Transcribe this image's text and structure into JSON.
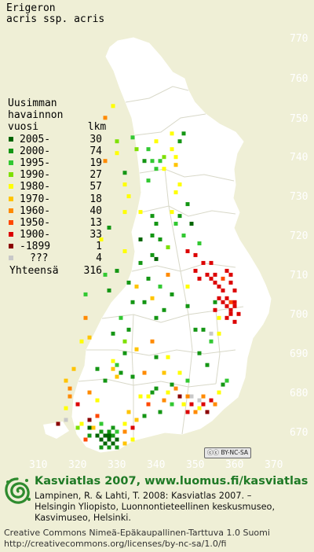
{
  "title_lines": [
    "Erigeron",
    "acris ssp. acris"
  ],
  "legend": {
    "heading": [
      "Uusimman",
      "havainnon",
      "vuosi        lkm"
    ],
    "items": [
      {
        "label": "2005-",
        "count": "30",
        "color": "#006400"
      },
      {
        "label": "2000-",
        "count": "74",
        "color": "#149614"
      },
      {
        "label": "1995-",
        "count": "19",
        "color": "#32c832"
      },
      {
        "label": "1990-",
        "count": "27",
        "color": "#7ee000"
      },
      {
        "label": "1980-",
        "count": "57",
        "color": "#ffff00"
      },
      {
        "label": "1970-",
        "count": "18",
        "color": "#ffc400"
      },
      {
        "label": "1960-",
        "count": "40",
        "color": "#ff8a00"
      },
      {
        "label": "1950-",
        "count": "13",
        "color": "#ff4800"
      },
      {
        "label": "1900-",
        "count": "33",
        "color": "#dc0000"
      },
      {
        "label": "-1899",
        "count": "1",
        "color": "#8b0000"
      },
      {
        "label": "???",
        "count": "4",
        "color": "#c8c8c8"
      }
    ],
    "total_label": "Yhteensä",
    "total_count": "316"
  },
  "axis_y": [
    "770",
    "760",
    "750",
    "740",
    "730",
    "720",
    "710",
    "700",
    "690",
    "680",
    "670"
  ],
  "axis_x": [
    "310",
    "320",
    "330",
    "340",
    "350",
    "360",
    "370"
  ],
  "badge": "BY-NC-SA",
  "footer": {
    "title": "Kasviatlas 2007, www.luomus.fi/kasviatlas",
    "citation": [
      "Lampinen, R. & Lahti, T. 2008: Kasviatlas 2007. –",
      "Helsingin Yliopisto, Luonnontieteellinen keskusmuseo,",
      "Kasvimuseo, Helsinki."
    ],
    "license": [
      "Creative Commons Nimeä-Epäkaupallinen-Tarttuva 1.0 Suomi",
      "http://creativecommons.org/licenses/by-nc-sa/1.0/fi"
    ]
  },
  "colors": {
    "background": "#efefd6",
    "land": "#ffffff",
    "boundary": "#d8d8c8",
    "footer_title": "#1f7a26"
  },
  "observations": [
    {
      "x": 316,
      "y": 672,
      "c": 9
    },
    {
      "x": 318,
      "y": 673,
      "c": 10
    },
    {
      "x": 321,
      "y": 671,
      "c": 3
    },
    {
      "x": 322,
      "y": 672,
      "c": 4
    },
    {
      "x": 324,
      "y": 673,
      "c": 9
    },
    {
      "x": 326,
      "y": 674,
      "c": 7
    },
    {
      "x": 321,
      "y": 677,
      "c": 8
    },
    {
      "x": 319,
      "y": 679,
      "c": 6
    },
    {
      "x": 319,
      "y": 681,
      "c": 6
    },
    {
      "x": 318,
      "y": 683,
      "c": 5
    },
    {
      "x": 320,
      "y": 686,
      "c": 5
    },
    {
      "x": 322,
      "y": 693,
      "c": 4
    },
    {
      "x": 324,
      "y": 694,
      "c": 5
    },
    {
      "x": 323,
      "y": 699,
      "c": 6
    },
    {
      "x": 323,
      "y": 705,
      "c": 2
    },
    {
      "x": 328,
      "y": 710,
      "c": 2
    },
    {
      "x": 325,
      "y": 671,
      "c": 5
    },
    {
      "x": 327,
      "y": 670,
      "c": 1
    },
    {
      "x": 327,
      "y": 668,
      "c": 0
    },
    {
      "x": 328,
      "y": 669,
      "c": 0
    },
    {
      "x": 328,
      "y": 667,
      "c": 0
    },
    {
      "x": 329,
      "y": 669,
      "c": 0
    },
    {
      "x": 329,
      "y": 668,
      "c": 0
    },
    {
      "x": 330,
      "y": 669,
      "c": 1
    },
    {
      "x": 330,
      "y": 667,
      "c": 0
    },
    {
      "x": 331,
      "y": 668,
      "c": 0
    },
    {
      "x": 329,
      "y": 670,
      "c": 1
    },
    {
      "x": 330,
      "y": 671,
      "c": 1
    },
    {
      "x": 331,
      "y": 670,
      "c": 2
    },
    {
      "x": 327,
      "y": 672,
      "c": 2
    },
    {
      "x": 333,
      "y": 670,
      "c": 6
    },
    {
      "x": 333,
      "y": 672,
      "c": 4
    },
    {
      "x": 335,
      "y": 671,
      "c": 8
    },
    {
      "x": 334,
      "y": 675,
      "c": 5
    },
    {
      "x": 336,
      "y": 673,
      "c": 5
    },
    {
      "x": 338,
      "y": 674,
      "c": 1
    },
    {
      "x": 337,
      "y": 679,
      "c": 4
    },
    {
      "x": 339,
      "y": 677,
      "c": 7
    },
    {
      "x": 340,
      "y": 680,
      "c": 1
    },
    {
      "x": 342,
      "y": 675,
      "c": 1
    },
    {
      "x": 343,
      "y": 678,
      "c": 6
    },
    {
      "x": 344,
      "y": 680,
      "c": 4
    },
    {
      "x": 345,
      "y": 682,
      "c": 1
    },
    {
      "x": 346,
      "y": 681,
      "c": 6
    },
    {
      "x": 345,
      "y": 677,
      "c": 2
    },
    {
      "x": 347,
      "y": 679,
      "c": 9
    },
    {
      "x": 348,
      "y": 677,
      "c": 4
    },
    {
      "x": 349,
      "y": 675,
      "c": 8
    },
    {
      "x": 349,
      "y": 679,
      "c": 6
    },
    {
      "x": 350,
      "y": 677,
      "c": 8
    },
    {
      "x": 350,
      "y": 679,
      "c": 10
    },
    {
      "x": 351,
      "y": 675,
      "c": 6
    },
    {
      "x": 352,
      "y": 676,
      "c": 4
    },
    {
      "x": 352,
      "y": 678,
      "c": 10
    },
    {
      "x": 353,
      "y": 679,
      "c": 6
    },
    {
      "x": 353,
      "y": 677,
      "c": 8
    },
    {
      "x": 354,
      "y": 675,
      "c": 9
    },
    {
      "x": 355,
      "y": 678,
      "c": 8
    },
    {
      "x": 356,
      "y": 677,
      "c": 6
    },
    {
      "x": 357,
      "y": 680,
      "c": 4
    },
    {
      "x": 358,
      "y": 682,
      "c": 1
    },
    {
      "x": 359,
      "y": 683,
      "c": 2
    },
    {
      "x": 341,
      "y": 689,
      "c": 1
    },
    {
      "x": 340,
      "y": 693,
      "c": 6
    },
    {
      "x": 333,
      "y": 693,
      "c": 3
    },
    {
      "x": 333,
      "y": 690,
      "c": 1
    },
    {
      "x": 336,
      "y": 691,
      "c": 5
    },
    {
      "x": 330,
      "y": 686,
      "c": 5
    },
    {
      "x": 331,
      "y": 684,
      "c": 5
    },
    {
      "x": 330,
      "y": 688,
      "c": 4
    },
    {
      "x": 331,
      "y": 687,
      "c": 2
    },
    {
      "x": 330,
      "y": 695,
      "c": 1
    },
    {
      "x": 334,
      "y": 696,
      "c": 1
    },
    {
      "x": 332,
      "y": 699,
      "c": 2
    },
    {
      "x": 335,
      "y": 703,
      "c": 1
    },
    {
      "x": 338,
      "y": 703,
      "c": 1
    },
    {
      "x": 341,
      "y": 699,
      "c": 1
    },
    {
      "x": 340,
      "y": 704,
      "c": 5
    },
    {
      "x": 343,
      "y": 701,
      "c": 1
    },
    {
      "x": 339,
      "y": 709,
      "c": 1
    },
    {
      "x": 336,
      "y": 707,
      "c": 5
    },
    {
      "x": 342,
      "y": 707,
      "c": 2
    },
    {
      "x": 344,
      "y": 710,
      "c": 6
    },
    {
      "x": 337,
      "y": 713,
      "c": 1
    },
    {
      "x": 341,
      "y": 714,
      "c": 0
    },
    {
      "x": 340,
      "y": 715,
      "c": 1
    },
    {
      "x": 333,
      "y": 716,
      "c": 4
    },
    {
      "x": 331,
      "y": 711,
      "c": 1
    },
    {
      "x": 329,
      "y": 706,
      "c": 1
    },
    {
      "x": 334,
      "y": 708,
      "c": 1
    },
    {
      "x": 337,
      "y": 719,
      "c": 0
    },
    {
      "x": 340,
      "y": 720,
      "c": 1
    },
    {
      "x": 341,
      "y": 723,
      "c": 1
    },
    {
      "x": 342,
      "y": 719,
      "c": 1
    },
    {
      "x": 340,
      "y": 725,
      "c": 1
    },
    {
      "x": 337,
      "y": 726,
      "c": 4
    },
    {
      "x": 333,
      "y": 726,
      "c": 4
    },
    {
      "x": 333,
      "y": 733,
      "c": 4
    },
    {
      "x": 333,
      "y": 736,
      "c": 1
    },
    {
      "x": 334,
      "y": 730,
      "c": 4
    },
    {
      "x": 339,
      "y": 734,
      "c": 2
    },
    {
      "x": 340,
      "y": 739,
      "c": 2
    },
    {
      "x": 341,
      "y": 737,
      "c": 2
    },
    {
      "x": 342,
      "y": 739,
      "c": 2
    },
    {
      "x": 343,
      "y": 737,
      "c": 4
    },
    {
      "x": 345,
      "y": 742,
      "c": 4
    },
    {
      "x": 346,
      "y": 740,
      "c": 4
    },
    {
      "x": 345,
      "y": 746,
      "c": 4
    },
    {
      "x": 347,
      "y": 744,
      "c": 1
    },
    {
      "x": 347,
      "y": 733,
      "c": 4
    },
    {
      "x": 346,
      "y": 731,
      "c": 4
    },
    {
      "x": 345,
      "y": 726,
      "c": 4
    },
    {
      "x": 347,
      "y": 725,
      "c": 1
    },
    {
      "x": 349,
      "y": 728,
      "c": 1
    },
    {
      "x": 350,
      "y": 723,
      "c": 0
    },
    {
      "x": 349,
      "y": 716,
      "c": 8
    },
    {
      "x": 352,
      "y": 718,
      "c": 2
    },
    {
      "x": 353,
      "y": 713,
      "c": 8
    },
    {
      "x": 351,
      "y": 711,
      "c": 8
    },
    {
      "x": 352,
      "y": 709,
      "c": 8
    },
    {
      "x": 349,
      "y": 707,
      "c": 4
    },
    {
      "x": 345,
      "y": 705,
      "c": 1
    },
    {
      "x": 349,
      "y": 702,
      "c": 1
    },
    {
      "x": 351,
      "y": 696,
      "c": 1
    },
    {
      "x": 353,
      "y": 696,
      "c": 1
    },
    {
      "x": 355,
      "y": 695,
      "c": 10
    },
    {
      "x": 357,
      "y": 699,
      "c": 4
    },
    {
      "x": 356,
      "y": 703,
      "c": 1
    },
    {
      "x": 355,
      "y": 709,
      "c": 8
    },
    {
      "x": 356,
      "y": 708,
      "c": 8
    },
    {
      "x": 357,
      "y": 707,
      "c": 8
    },
    {
      "x": 358,
      "y": 706,
      "c": 8
    },
    {
      "x": 359,
      "y": 704,
      "c": 8
    },
    {
      "x": 358,
      "y": 703,
      "c": 8
    },
    {
      "x": 359,
      "y": 702,
      "c": 8
    },
    {
      "x": 360,
      "y": 701,
      "c": 8
    },
    {
      "x": 360,
      "y": 703,
      "c": 7
    },
    {
      "x": 361,
      "y": 702,
      "c": 8
    },
    {
      "x": 361,
      "y": 706,
      "c": 8
    },
    {
      "x": 360,
      "y": 708,
      "c": 8
    },
    {
      "x": 358,
      "y": 709,
      "c": 7
    },
    {
      "x": 356,
      "y": 710,
      "c": 8
    },
    {
      "x": 354,
      "y": 710,
      "c": 8
    },
    {
      "x": 360,
      "y": 700,
      "c": 8
    },
    {
      "x": 362,
      "y": 700,
      "c": 8
    },
    {
      "x": 359,
      "y": 699,
      "c": 8
    },
    {
      "x": 361,
      "y": 698,
      "c": 8
    },
    {
      "x": 359,
      "y": 711,
      "c": 8
    },
    {
      "x": 360,
      "y": 710,
      "c": 8
    },
    {
      "x": 357,
      "y": 704,
      "c": 8
    },
    {
      "x": 361,
      "y": 703,
      "c": 8
    },
    {
      "x": 355,
      "y": 693,
      "c": 2
    },
    {
      "x": 354,
      "y": 687,
      "c": 1
    },
    {
      "x": 352,
      "y": 690,
      "c": 1
    },
    {
      "x": 349,
      "y": 683,
      "c": 2
    },
    {
      "x": 347,
      "y": 685,
      "c": 4
    },
    {
      "x": 343,
      "y": 685,
      "c": 5
    },
    {
      "x": 344,
      "y": 689,
      "c": 4
    },
    {
      "x": 338,
      "y": 685,
      "c": 6
    },
    {
      "x": 335,
      "y": 684,
      "c": 1
    },
    {
      "x": 324,
      "y": 671,
      "c": 0
    },
    {
      "x": 326,
      "y": 669,
      "c": 0
    },
    {
      "x": 324,
      "y": 669,
      "c": 1
    },
    {
      "x": 327,
      "y": 666,
      "c": 1
    },
    {
      "x": 329,
      "y": 666,
      "c": 1
    },
    {
      "x": 331,
      "y": 666,
      "c": 1
    },
    {
      "x": 333,
      "y": 667,
      "c": 5
    },
    {
      "x": 335,
      "y": 668,
      "c": 4
    },
    {
      "x": 318,
      "y": 676,
      "c": 4
    },
    {
      "x": 326,
      "y": 678,
      "c": 4
    },
    {
      "x": 328,
      "y": 683,
      "c": 1
    },
    {
      "x": 326,
      "y": 686,
      "c": 1
    },
    {
      "x": 332,
      "y": 685,
      "c": 1
    },
    {
      "x": 339,
      "y": 679,
      "c": 4
    },
    {
      "x": 341,
      "y": 681,
      "c": 1
    },
    {
      "x": 327,
      "y": 719,
      "c": 4
    },
    {
      "x": 328,
      "y": 739,
      "c": 6
    },
    {
      "x": 328,
      "y": 750,
      "c": 6
    },
    {
      "x": 330,
      "y": 753,
      "c": 4
    },
    {
      "x": 331,
      "y": 744,
      "c": 3
    },
    {
      "x": 331,
      "y": 741,
      "c": 4
    },
    {
      "x": 341,
      "y": 744,
      "c": 4
    },
    {
      "x": 343,
      "y": 740,
      "c": 3
    },
    {
      "x": 346,
      "y": 738,
      "c": 5
    },
    {
      "x": 348,
      "y": 746,
      "c": 1
    },
    {
      "x": 339,
      "y": 742,
      "c": 2
    },
    {
      "x": 335,
      "y": 745,
      "c": 2
    },
    {
      "x": 336,
      "y": 742,
      "c": 3
    },
    {
      "x": 338,
      "y": 739,
      "c": 1
    },
    {
      "x": 346,
      "y": 723,
      "c": 2
    },
    {
      "x": 348,
      "y": 720,
      "c": 2
    },
    {
      "x": 344,
      "y": 717,
      "c": 3
    },
    {
      "x": 329,
      "y": 722,
      "c": 1
    },
    {
      "x": 351,
      "y": 715,
      "c": 8
    },
    {
      "x": 355,
      "y": 713,
      "c": 8
    },
    {
      "x": 356,
      "y": 701,
      "c": 8
    },
    {
      "x": 357,
      "y": 695,
      "c": 4
    },
    {
      "x": 323,
      "y": 668,
      "c": 7
    },
    {
      "x": 324,
      "y": 680,
      "c": 6
    }
  ]
}
